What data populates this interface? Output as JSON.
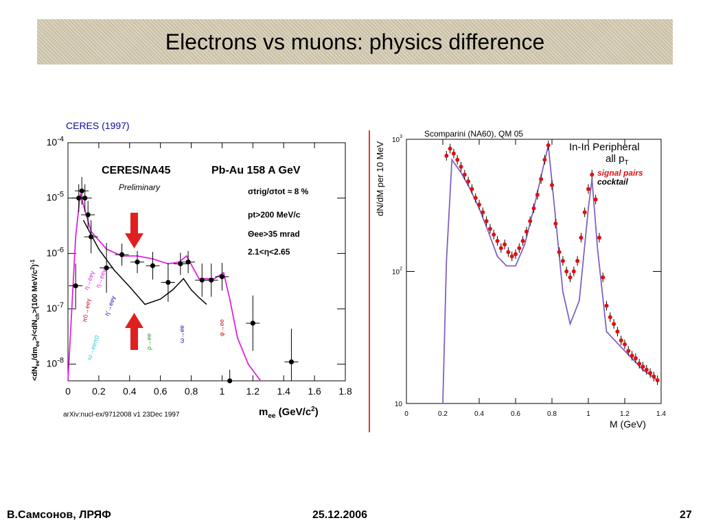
{
  "slide": {
    "title": "Electrons vs muons: physics difference",
    "footer_left": "В.Самсонов, ЛРЯФ",
    "footer_center": "25.12.2006",
    "page_number": "27"
  },
  "chart_data": [
    {
      "type": "scatter",
      "caption": "CERES (1997)",
      "title": "CERES/NA45",
      "experiment": "Pb-Au 158 A GeV",
      "preliminary": "Preliminary",
      "cuts": [
        "σtrig/σtot ≈ 8 %",
        "pt>200 MeV/c",
        "Θee>35 mrad",
        "2.1<η<2.65"
      ],
      "source": "arXiv:nucl-ex/9712008 v1 23Dec 1997",
      "xlabel": "mee (GeV/c2)",
      "ylabel": "<dNee/dmee>/<dNch>(100 MeV/c2)-1",
      "xlim": [
        0,
        1.8
      ],
      "ylim": [
        5e-09,
        0.0001
      ],
      "yscale": "log",
      "x_ticks": [
        "0",
        "0.2",
        "0.4",
        "0.6",
        "0.8",
        "1",
        "1.2",
        "1.4",
        "1.6",
        "1.8"
      ],
      "y_ticks": [
        "10-8",
        "10-7",
        "10-6",
        "10-5",
        "10-4"
      ],
      "component_labels": [
        "π0→eeγ",
        "η→eeγ",
        "η'→eeγ",
        "ρ→ee",
        "ω→ee",
        "φ→ee",
        "ω→eeπ0",
        "η→eeγ"
      ],
      "colors": {
        "data": "#000000",
        "cocktail_total": "#e020e0",
        "eta": "#e020e0",
        "pi0": "#d01010",
        "etaprime": "#1010b0",
        "rho": "#20a020",
        "omega": "#1010b0",
        "phi": "#d01010",
        "omegadalitz": "#20c8d8",
        "background": "#000000",
        "annotation": "#e02020"
      },
      "series": [
        {
          "name": "data",
          "points": [
            {
              "x": 0.05,
              "y": 2.6e-07,
              "yerr": 0.4
            },
            {
              "x": 0.07,
              "y": 1e-05,
              "yerr": 0.25
            },
            {
              "x": 0.09,
              "y": 1.35e-05,
              "yerr": 0.25
            },
            {
              "x": 0.11,
              "y": 1e-05,
              "yerr": 0.25
            },
            {
              "x": 0.13,
              "y": 5e-06,
              "yerr": 0.25
            },
            {
              "x": 0.15,
              "y": 2e-06,
              "yerr": 0.3
            },
            {
              "x": 0.25,
              "y": 5.5e-07,
              "yerr": 0.45
            },
            {
              "x": 0.35,
              "y": 9.5e-07,
              "yerr": 0.2
            },
            {
              "x": 0.45,
              "y": 7e-07,
              "yerr": 0.2
            },
            {
              "x": 0.55,
              "y": 6e-07,
              "yerr": 0.25
            },
            {
              "x": 0.65,
              "y": 3e-07,
              "yerr": 0.35
            },
            {
              "x": 0.73,
              "y": 6.5e-07,
              "yerr": 0.2
            },
            {
              "x": 0.78,
              "y": 7e-07,
              "yerr": 0.2
            },
            {
              "x": 0.87,
              "y": 3.3e-07,
              "yerr": 0.3
            },
            {
              "x": 0.93,
              "y": 3.3e-07,
              "yerr": 0.3
            },
            {
              "x": 1.0,
              "y": 3.8e-07,
              "yerr": 0.25
            },
            {
              "x": 1.05,
              "y": 5e-09,
              "yerr": 0.2
            },
            {
              "x": 1.2,
              "y": 5.5e-08,
              "yerr": 0.5
            },
            {
              "x": 1.45,
              "y": 1.1e-08,
              "yerr": 0.6
            }
          ]
        },
        {
          "name": "cocktail",
          "points": [
            [
              0.0,
              5e-09
            ],
            [
              0.05,
              2e-06
            ],
            [
              0.08,
              1.2e-05
            ],
            [
              0.11,
              6e-06
            ],
            [
              0.15,
              2.5e-06
            ],
            [
              0.25,
              1.2e-06
            ],
            [
              0.35,
              9e-07
            ],
            [
              0.45,
              9e-07
            ],
            [
              0.55,
              8e-07
            ],
            [
              0.65,
              6.5e-07
            ],
            [
              0.72,
              7e-07
            ],
            [
              0.77,
              9e-07
            ],
            [
              0.85,
              3.5e-07
            ],
            [
              0.95,
              3.5e-07
            ],
            [
              1.01,
              4.5e-07
            ],
            [
              1.05,
              1.5e-07
            ],
            [
              1.1,
              3e-08
            ],
            [
              1.17,
              1e-08
            ],
            [
              1.25,
              5e-09
            ]
          ]
        },
        {
          "name": "background",
          "points": [
            [
              0.1,
              4e-06
            ],
            [
              0.2,
              1.2e-06
            ],
            [
              0.3,
              5e-07
            ],
            [
              0.4,
              2.5e-07
            ],
            [
              0.5,
              1.2e-07
            ],
            [
              0.6,
              1.5e-07
            ],
            [
              0.68,
              2.2e-07
            ],
            [
              0.75,
              3.5e-07
            ],
            [
              0.8,
              2.2e-07
            ],
            [
              0.85,
              1.6e-07
            ],
            [
              0.9,
              1.2e-07
            ]
          ]
        }
      ]
    },
    {
      "type": "scatter",
      "caption": "Scomparini (NA60), QM 05",
      "title": "In-In Peripheral",
      "subtitle": "all pT",
      "legend": [
        "signal pairs",
        "cocktail"
      ],
      "xlabel": "M (GeV)",
      "ylabel": "dN/dM per 10 MeV",
      "xlim": [
        0,
        1.4
      ],
      "ylim": [
        10,
        1000
      ],
      "yscale": "log",
      "x_ticks": [
        "0",
        "0.2",
        "0.4",
        "0.6",
        "0.8",
        "1",
        "1.2",
        "1.4"
      ],
      "y_ticks": [
        "10",
        "102",
        "103"
      ],
      "colors": {
        "signal": "#e01010",
        "data": "#000000",
        "eta": "#e020e0",
        "omega_phi": "#1010d0",
        "rho": "#c03020",
        "cocktail_total": "#8060c0"
      },
      "series": [
        {
          "name": "signal pairs",
          "points": [
            [
              0.22,
              750
            ],
            [
              0.24,
              850
            ],
            [
              0.26,
              780
            ],
            [
              0.28,
              700
            ],
            [
              0.3,
              620
            ],
            [
              0.32,
              540
            ],
            [
              0.34,
              480
            ],
            [
              0.36,
              420
            ],
            [
              0.38,
              360
            ],
            [
              0.4,
              320
            ],
            [
              0.42,
              280
            ],
            [
              0.44,
              240
            ],
            [
              0.46,
              210
            ],
            [
              0.48,
              190
            ],
            [
              0.5,
              170
            ],
            [
              0.52,
              150
            ],
            [
              0.54,
              160
            ],
            [
              0.56,
              140
            ],
            [
              0.58,
              130
            ],
            [
              0.6,
              135
            ],
            [
              0.62,
              150
            ],
            [
              0.64,
              170
            ],
            [
              0.66,
              200
            ],
            [
              0.68,
              240
            ],
            [
              0.7,
              300
            ],
            [
              0.72,
              380
            ],
            [
              0.74,
              500
            ],
            [
              0.76,
              700
            ],
            [
              0.78,
              900
            ],
            [
              0.8,
              450
            ],
            [
              0.82,
              230
            ],
            [
              0.84,
              140
            ],
            [
              0.86,
              120
            ],
            [
              0.88,
              100
            ],
            [
              0.9,
              90
            ],
            [
              0.92,
              100
            ],
            [
              0.94,
              120
            ],
            [
              0.96,
              180
            ],
            [
              0.98,
              280
            ],
            [
              1.0,
              420
            ],
            [
              1.02,
              540
            ],
            [
              1.04,
              350
            ],
            [
              1.06,
              180
            ],
            [
              1.08,
              90
            ],
            [
              1.1,
              55
            ],
            [
              1.12,
              45
            ],
            [
              1.14,
              40
            ],
            [
              1.16,
              35
            ],
            [
              1.18,
              30
            ],
            [
              1.2,
              28
            ],
            [
              1.22,
              25
            ],
            [
              1.24,
              23
            ],
            [
              1.26,
              22
            ],
            [
              1.28,
              20
            ],
            [
              1.3,
              19
            ],
            [
              1.32,
              18
            ],
            [
              1.34,
              17
            ],
            [
              1.36,
              16
            ],
            [
              1.38,
              15
            ]
          ]
        },
        {
          "name": "cocktail",
          "points": [
            [
              0.2,
              10
            ],
            [
              0.22,
              120
            ],
            [
              0.25,
              700
            ],
            [
              0.3,
              560
            ],
            [
              0.35,
              420
            ],
            [
              0.4,
              300
            ],
            [
              0.45,
              200
            ],
            [
              0.5,
              130
            ],
            [
              0.55,
              110
            ],
            [
              0.6,
              110
            ],
            [
              0.65,
              160
            ],
            [
              0.7,
              300
            ],
            [
              0.75,
              600
            ],
            [
              0.78,
              900
            ],
            [
              0.82,
              250
            ],
            [
              0.86,
              70
            ],
            [
              0.9,
              40
            ],
            [
              0.95,
              60
            ],
            [
              1.0,
              300
            ],
            [
              1.02,
              500
            ],
            [
              1.05,
              150
            ],
            [
              1.1,
              35
            ],
            [
              1.2,
              25
            ],
            [
              1.3,
              18
            ],
            [
              1.38,
              15
            ]
          ]
        }
      ]
    }
  ]
}
